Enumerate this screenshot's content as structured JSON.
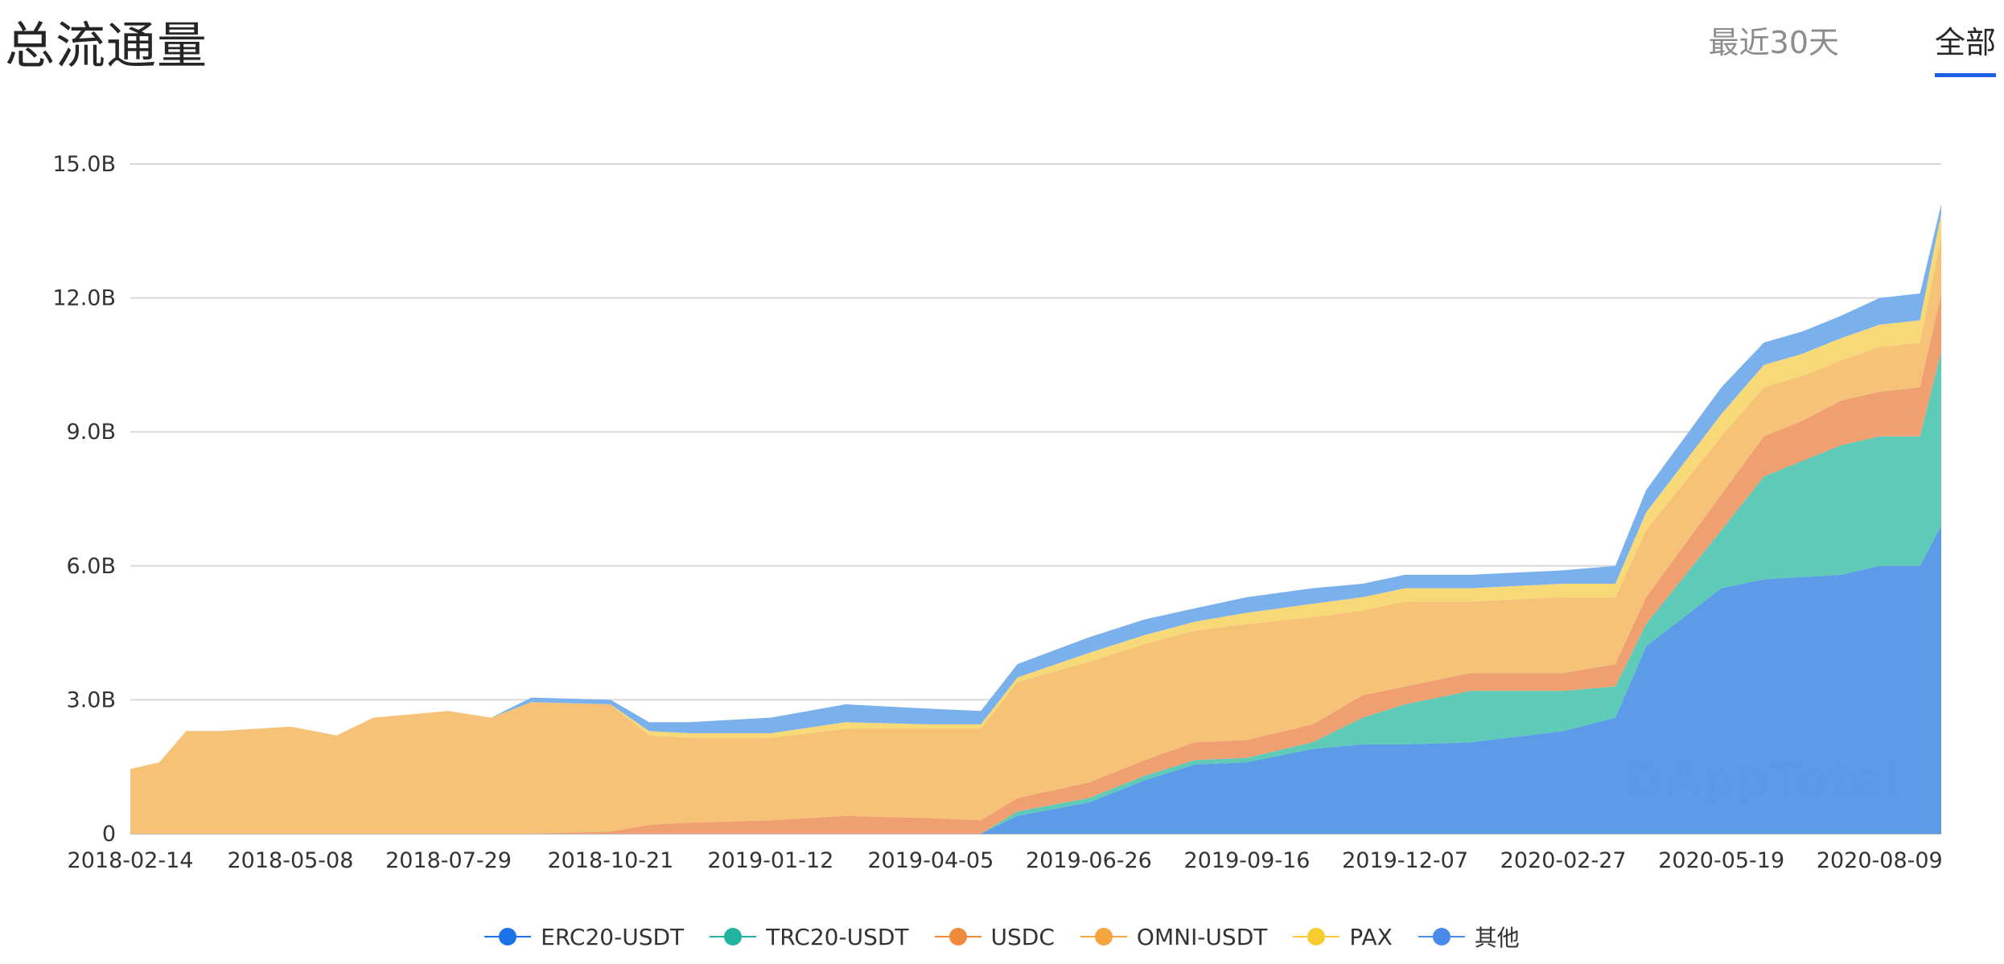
{
  "header": {
    "title": "总流通量",
    "tabs": [
      {
        "label": "最近30天",
        "active": false
      },
      {
        "label": "全部",
        "active": true
      }
    ]
  },
  "watermark": "DAppTotal",
  "chart_data": {
    "type": "area",
    "stacked": true,
    "grid": true,
    "legend_position": "bottom",
    "ylim": [
      0,
      15.0
    ],
    "yticks": [
      0,
      3.0,
      6.0,
      9.0,
      12.0,
      15.0
    ],
    "ytick_labels": [
      "0",
      "3.0B",
      "6.0B",
      "9.0B",
      "12.0B",
      "15.0B"
    ],
    "xtick_labels": [
      "2018-02-14",
      "2018-05-08",
      "2018-07-29",
      "2018-10-21",
      "2019-01-12",
      "2019-04-05",
      "2019-06-26",
      "2019-09-16",
      "2019-12-07",
      "2020-02-27",
      "2020-05-19",
      "2020-08-09"
    ],
    "x": [
      "2018-02-14",
      "2018-03-01",
      "2018-03-15",
      "2018-04-01",
      "2018-05-08",
      "2018-06-01",
      "2018-06-20",
      "2018-07-29",
      "2018-08-20",
      "2018-09-10",
      "2018-10-21",
      "2018-11-10",
      "2018-12-01",
      "2019-01-12",
      "2019-02-20",
      "2019-04-05",
      "2019-05-01",
      "2019-05-20",
      "2019-06-26",
      "2019-07-25",
      "2019-08-20",
      "2019-09-16",
      "2019-10-20",
      "2019-11-15",
      "2019-12-07",
      "2020-01-10",
      "2020-02-27",
      "2020-03-25",
      "2020-04-10",
      "2020-05-19",
      "2020-06-10",
      "2020-06-30",
      "2020-07-20",
      "2020-08-09",
      "2020-08-30",
      "2020-09-10"
    ],
    "series": [
      {
        "name": "ERC20-USDT",
        "color": "#5b9be8",
        "values": [
          0,
          0,
          0,
          0,
          0,
          0,
          0,
          0,
          0,
          0,
          0,
          0,
          0,
          0,
          0,
          0,
          0,
          0.4,
          0.7,
          1.2,
          1.55,
          1.6,
          1.9,
          2.0,
          2.0,
          2.05,
          2.3,
          2.6,
          4.2,
          5.5,
          5.7,
          5.75,
          5.8,
          6.0,
          6.0,
          6.9
        ]
      },
      {
        "name": "TRC20-USDT",
        "color": "#5ecab8",
        "values": [
          0,
          0,
          0,
          0,
          0,
          0,
          0,
          0,
          0,
          0,
          0,
          0,
          0,
          0,
          0,
          0,
          0,
          0.1,
          0.1,
          0.1,
          0.1,
          0.1,
          0.15,
          0.6,
          0.9,
          1.15,
          0.9,
          0.7,
          0.5,
          1.3,
          2.3,
          2.6,
          2.9,
          2.9,
          2.9,
          3.9
        ]
      },
      {
        "name": "USDC",
        "color": "#f0a070",
        "values": [
          0,
          0,
          0,
          0,
          0,
          0,
          0,
          0,
          0,
          0,
          0.05,
          0.2,
          0.25,
          0.3,
          0.4,
          0.35,
          0.3,
          0.3,
          0.35,
          0.35,
          0.4,
          0.4,
          0.4,
          0.5,
          0.4,
          0.4,
          0.4,
          0.5,
          0.6,
          0.8,
          0.9,
          0.9,
          1.0,
          1.0,
          1.1,
          1.3
        ]
      },
      {
        "name": "OMNI-USDT",
        "color": "#f5c277",
        "values": [
          1.45,
          1.6,
          2.3,
          2.3,
          2.4,
          2.2,
          2.6,
          2.75,
          2.6,
          2.95,
          2.85,
          2.0,
          1.9,
          1.85,
          1.95,
          2.0,
          2.05,
          2.6,
          2.7,
          2.6,
          2.5,
          2.6,
          2.4,
          1.9,
          1.9,
          1.6,
          1.7,
          1.5,
          1.5,
          1.3,
          1.1,
          1.0,
          0.9,
          1.0,
          1.0,
          1.3
        ]
      },
      {
        "name": "PAX",
        "color": "#f8d978",
        "values": [
          0,
          0,
          0,
          0,
          0,
          0,
          0,
          0,
          0,
          0,
          0,
          0.1,
          0.1,
          0.1,
          0.15,
          0.1,
          0.1,
          0.1,
          0.2,
          0.2,
          0.2,
          0.25,
          0.3,
          0.3,
          0.3,
          0.3,
          0.3,
          0.3,
          0.4,
          0.5,
          0.5,
          0.5,
          0.5,
          0.5,
          0.5,
          0.5
        ]
      },
      {
        "name": "其他",
        "color": "#7ab0ec",
        "values": [
          0,
          0,
          0,
          0,
          0,
          0,
          0,
          0,
          0,
          0.1,
          0.1,
          0.2,
          0.25,
          0.35,
          0.4,
          0.35,
          0.3,
          0.3,
          0.35,
          0.35,
          0.3,
          0.35,
          0.35,
          0.3,
          0.3,
          0.3,
          0.3,
          0.4,
          0.5,
          0.6,
          0.5,
          0.5,
          0.5,
          0.6,
          0.6,
          0.2
        ]
      }
    ],
    "legend_colors": [
      "#1a73e8",
      "#22b3a0",
      "#f08a3c",
      "#f5a540",
      "#f8cc30",
      "#4a8ae8"
    ]
  }
}
